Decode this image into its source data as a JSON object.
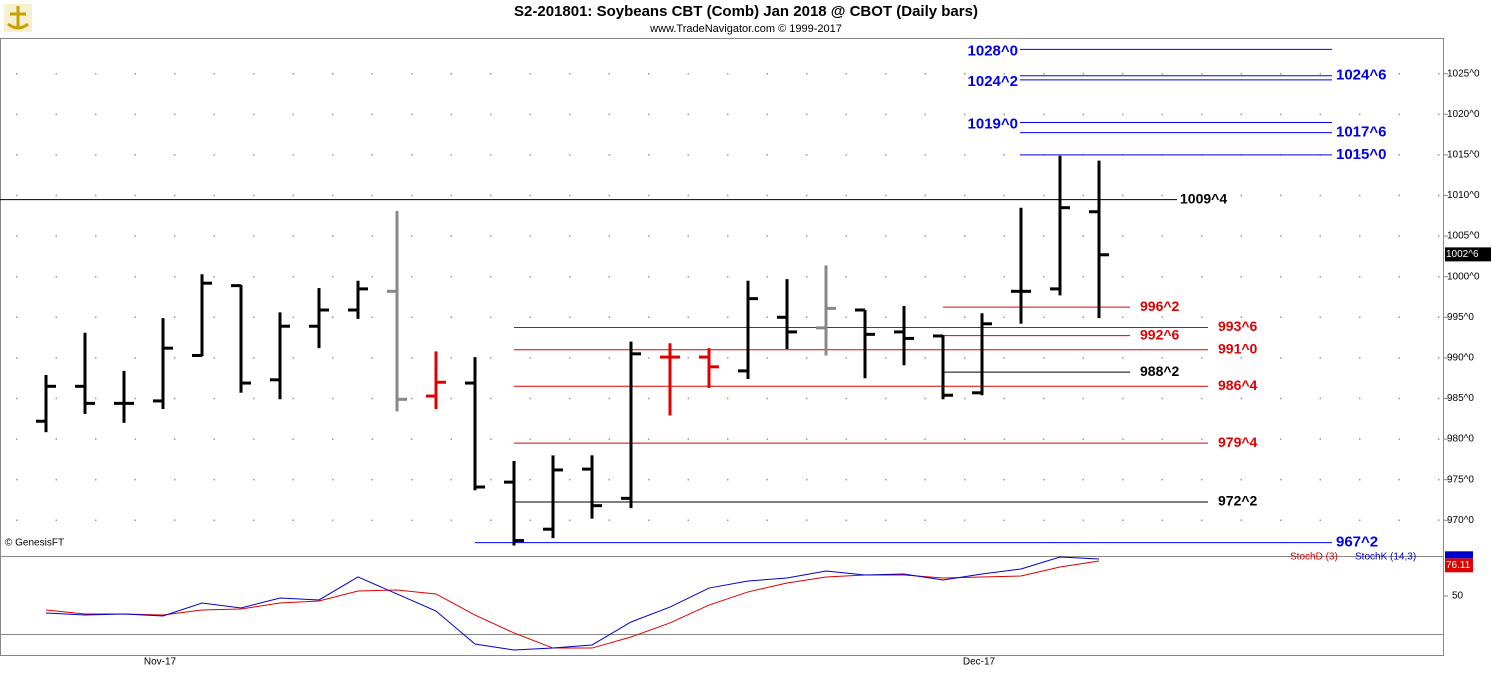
{
  "chart_data": [
    {
      "type": "ohlc",
      "title": "S2-201801:  Soybeans CBT (Comb) Jan 2018 @ CBOT  (Daily bars)",
      "subtitle": "www.TradeNavigator.com © 1999-2017",
      "note": "© GenesisFT",
      "categories": [
        null,
        null,
        null,
        "Nov-17",
        null,
        null,
        null,
        null,
        null,
        null,
        null,
        null,
        null,
        null,
        null,
        null,
        null,
        null,
        null,
        null,
        null,
        null,
        null,
        null,
        "Dec-17",
        null,
        null,
        null
      ],
      "open": [
        982.2,
        986.5,
        984.4,
        984.7,
        990.3,
        998.9,
        987.3,
        993.9,
        995.9,
        998.2,
        985.3,
        986.9,
        974.7,
        968.9,
        976.3,
        972.7,
        990.1,
        990.1,
        988.4,
        995.0,
        993.7,
        995.9,
        993.2,
        992.7,
        985.7,
        998.2,
        998.5,
        1008.0
      ],
      "high": [
        987.9,
        993.1,
        988.4,
        994.9,
        1000.3,
        999.0,
        995.6,
        998.6,
        999.5,
        1008.1,
        990.8,
        990.1,
        977.3,
        978.0,
        978.0,
        992.0,
        991.8,
        991.2,
        999.5,
        999.7,
        1001.4,
        995.9,
        996.4,
        992.8,
        995.5,
        1008.5,
        1014.9,
        1014.3
      ],
      "low": [
        980.85,
        983.1,
        982.0,
        983.7,
        990.2,
        985.7,
        984.9,
        991.2,
        994.8,
        983.4,
        983.7,
        973.7,
        966.9,
        967.8,
        970.2,
        971.5,
        982.9,
        986.3,
        987.4,
        991.1,
        990.3,
        987.5,
        989.1,
        984.9,
        985.4,
        994.2,
        997.7,
        994.9
      ],
      "close": [
        986.5,
        984.4,
        984.4,
        991.2,
        999.2,
        986.9,
        993.9,
        995.9,
        998.5,
        984.9,
        987.0,
        974.1,
        967.5,
        976.2,
        971.8,
        990.5,
        990.1,
        988.9,
        997.3,
        993.2,
        996.1,
        992.9,
        992.4,
        985.4,
        994.2,
        998.2,
        1008.5,
        1002.7
      ],
      "colors": [
        "#000000",
        "#000000",
        "#000000",
        "#000000",
        "#000000",
        "#000000",
        "#000000",
        "#000000",
        "#000000",
        "#888888",
        "#e00000",
        "#000000",
        "#000000",
        "#000000",
        "#000000",
        "#000000",
        "#e00000",
        "#e00000",
        "#000000",
        "#000000",
        "#888888",
        "#000000",
        "#000000",
        "#000000",
        "#000000",
        "#000000",
        "#000000",
        "#000000"
      ],
      "ylim": [
        965.6,
        1029.4
      ],
      "yticks": [
        {
          "value": 970,
          "label": "970^0"
        },
        {
          "value": 975,
          "label": "975^0"
        },
        {
          "value": 980,
          "label": "980^0"
        },
        {
          "value": 985,
          "label": "985^0"
        },
        {
          "value": 990,
          "label": "990^0"
        },
        {
          "value": 995,
          "label": "995^0"
        },
        {
          "value": 1000,
          "label": "1000^0"
        },
        {
          "value": 1005,
          "label": "1005^0"
        },
        {
          "value": 1010,
          "label": "1010^0"
        },
        {
          "value": 1015,
          "label": "1015^0"
        },
        {
          "value": 1020,
          "label": "1020^0"
        },
        {
          "value": 1025,
          "label": "1025^0"
        }
      ],
      "grid": true,
      "marker": {
        "value": 1002.75,
        "label": "1002^6"
      },
      "levels": [
        {
          "value": 1028,
          "label": "1028^0",
          "color": "#0000ee"
        },
        {
          "value": 1024.75,
          "label": "1024^6",
          "color": "#0000ee"
        },
        {
          "value": 1024.25,
          "label": "1024^2",
          "color": "#0000ee"
        },
        {
          "value": 1019,
          "label": "1019^0",
          "color": "#0000ee"
        },
        {
          "value": 1017.75,
          "label": "1017^6",
          "color": "#0000ee"
        },
        {
          "value": 1015,
          "label": "1015^0",
          "color": "#0000ee"
        },
        {
          "value": 1009.5,
          "label": "1009^4",
          "color": "#000000"
        },
        {
          "value": 996.25,
          "label": "996^2",
          "color": "#e00000"
        },
        {
          "value": 993.75,
          "label": "993^6",
          "color": "#e00000"
        },
        {
          "value": 992.75,
          "label": "992^6",
          "color": "#e00000"
        },
        {
          "value": 991,
          "label": "991^0",
          "color": "#e00000"
        },
        {
          "value": 988.25,
          "label": "988^2",
          "color": "#000000"
        },
        {
          "value": 986.5,
          "label": "986^4",
          "color": "#e00000"
        },
        {
          "value": 979.5,
          "label": "979^4",
          "color": "#e00000"
        },
        {
          "value": 972.25,
          "label": "972^2",
          "color": "#000000"
        },
        {
          "value": 967.25,
          "label": "967^2",
          "color": "#0000ee"
        }
      ]
    },
    {
      "type": "line",
      "series": [
        {
          "name": "StochD (3)",
          "color": "#dd0000",
          "values": [
            38.2,
            34.8,
            34.8,
            33.9,
            38.2,
            39.0,
            44.1,
            45.8,
            54.3,
            55.2,
            51.8,
            33.9,
            18.7,
            5.9,
            5.9,
            15.3,
            27.2,
            42.4,
            53.5,
            61.1,
            66.2,
            67.9,
            67.9,
            65.3,
            66.2,
            67.0,
            74.7,
            79.8
          ]
        },
        {
          "name": "StochK (14,3)",
          "color": "#0000cc",
          "values": [
            35.6,
            33.9,
            34.8,
            33.1,
            44.1,
            39.9,
            48.4,
            46.7,
            66.2,
            51.8,
            37.3,
            9.3,
            4.2,
            5.9,
            8.5,
            28.0,
            40.7,
            56.8,
            62.8,
            65.3,
            71.3,
            67.9,
            68.7,
            63.6,
            68.7,
            73.0,
            83.1,
            81.5
          ]
        }
      ],
      "ylim": [
        0,
        84
      ],
      "yticks": [
        50
      ],
      "marker": {
        "value": 76.11,
        "label": "76.11"
      }
    }
  ]
}
